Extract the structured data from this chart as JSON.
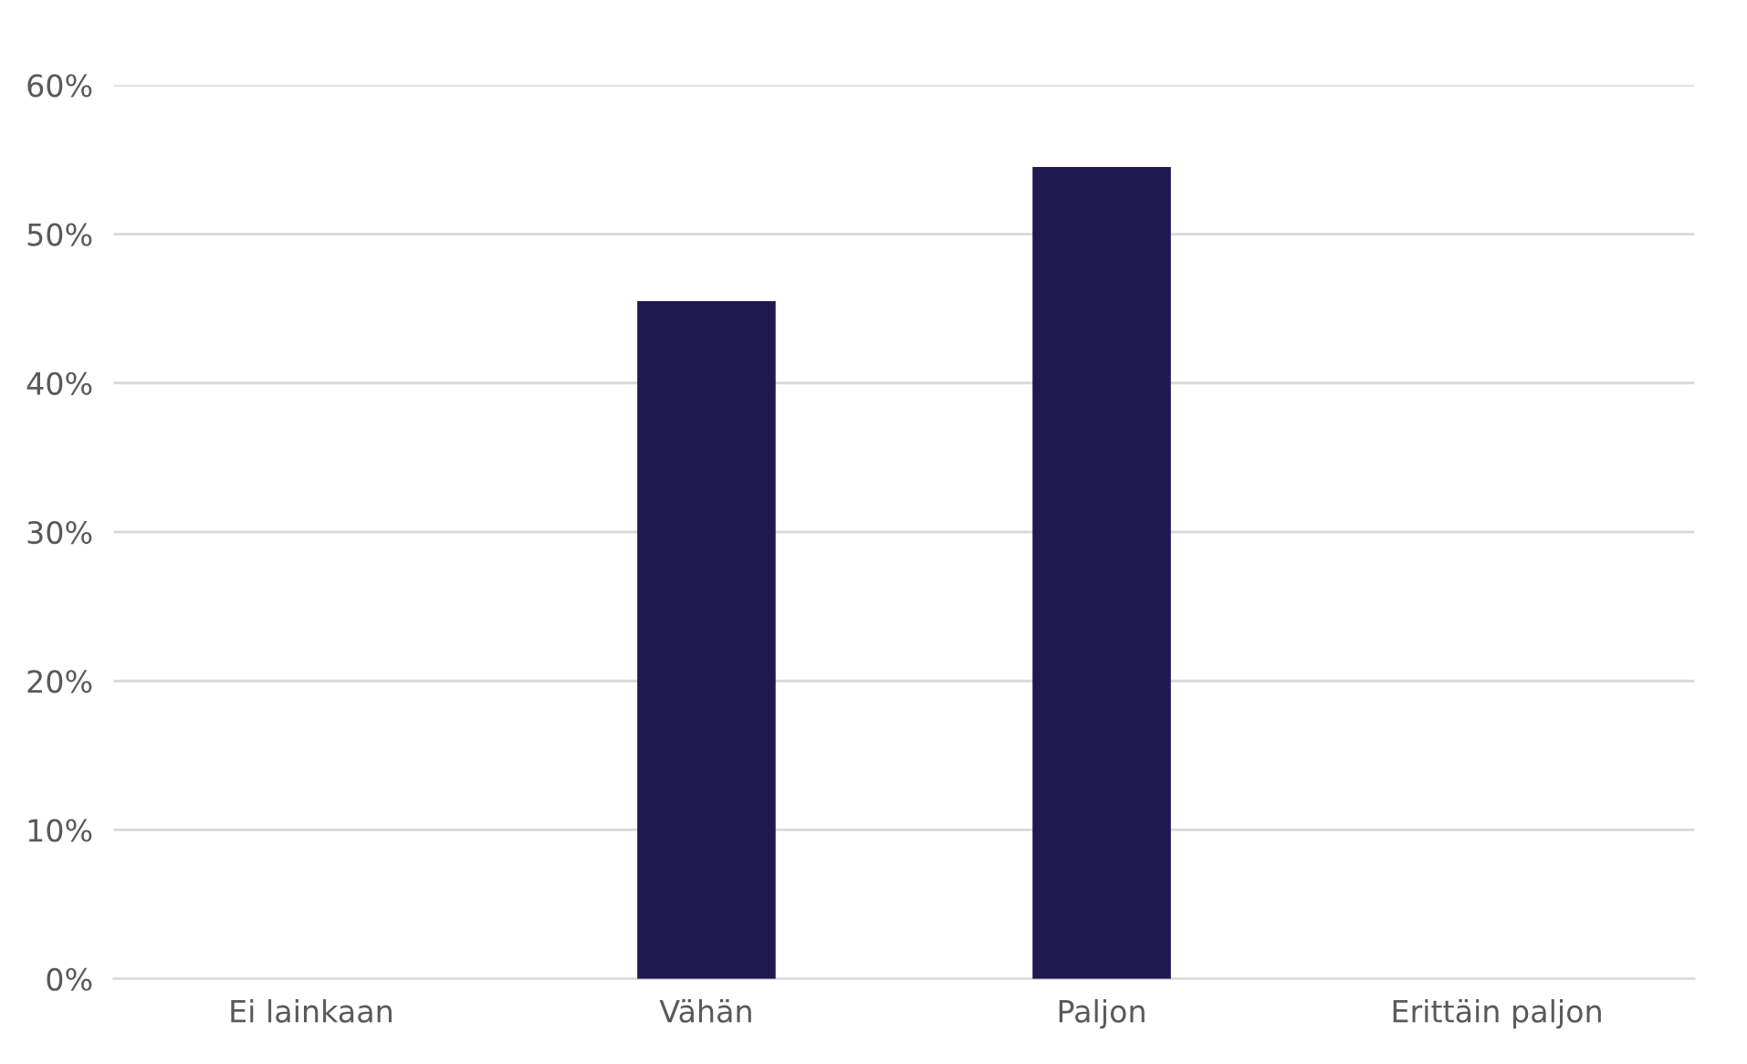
{
  "chart_data": {
    "type": "bar",
    "categories": [
      "Ei lainkaan",
      "Vähän",
      "Paljon",
      "Erittäin paljon"
    ],
    "values": [
      0,
      45.5,
      54.5,
      0
    ],
    "color": "#20194f",
    "ylim": [
      0,
      60
    ],
    "yticks": [
      {
        "value": 0,
        "label": "0%"
      },
      {
        "value": 10,
        "label": "10%"
      },
      {
        "value": 20,
        "label": "20%"
      },
      {
        "value": 30,
        "label": "30%"
      },
      {
        "value": 40,
        "label": "40%"
      },
      {
        "value": 50,
        "label": "50%"
      },
      {
        "value": 60,
        "label": "60%"
      }
    ],
    "grid": "y"
  }
}
